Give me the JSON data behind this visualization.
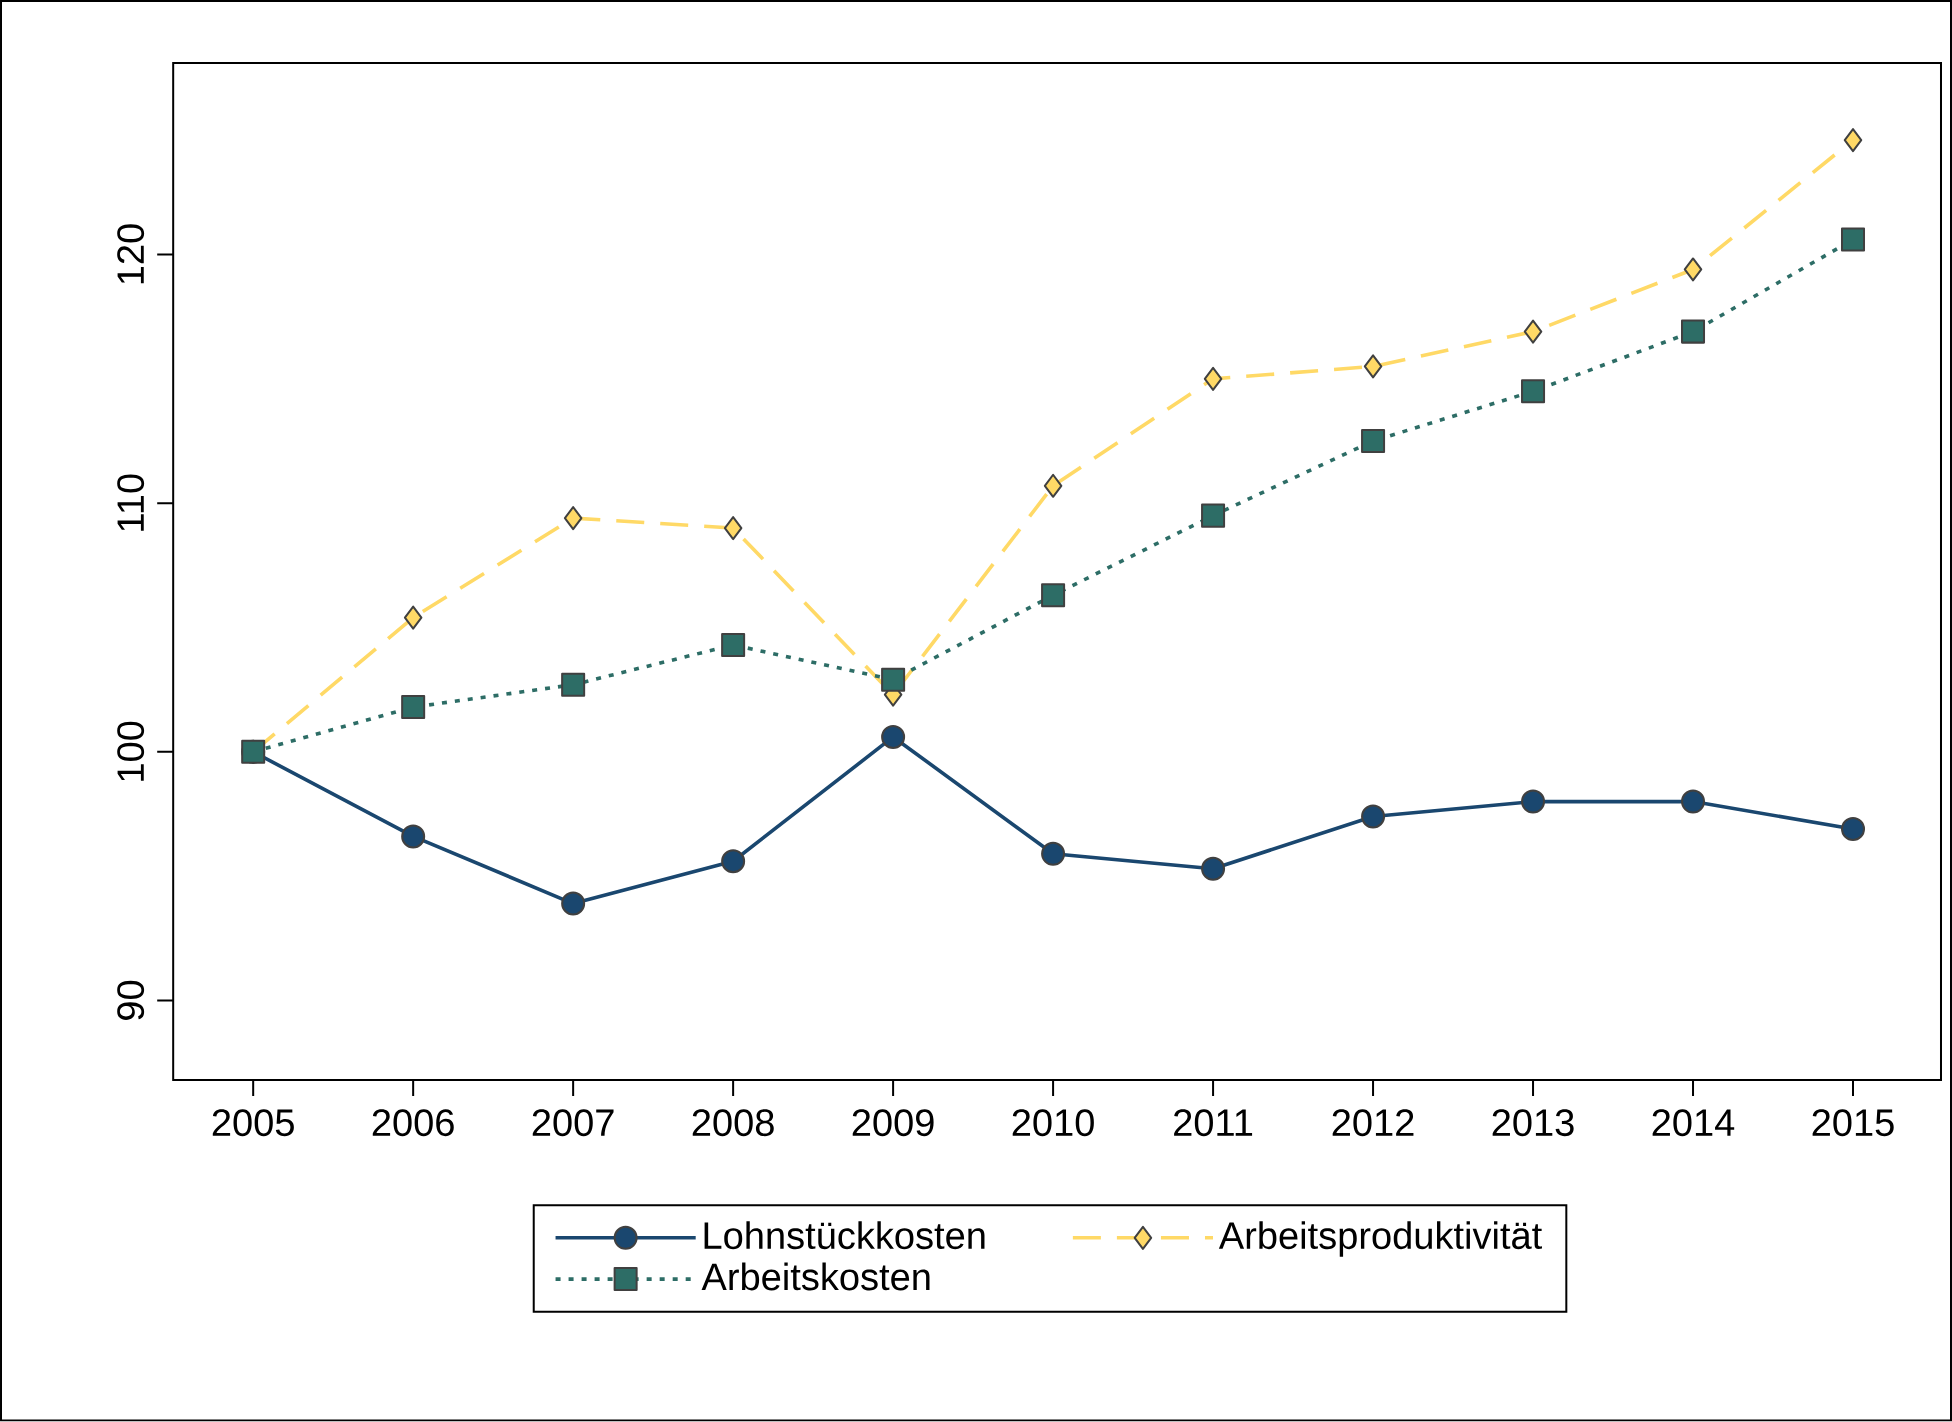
{
  "chart_data": {
    "type": "line",
    "x": [
      2005,
      2006,
      2007,
      2008,
      2009,
      2010,
      2011,
      2012,
      2013,
      2014,
      2015
    ],
    "series": [
      {
        "name": "Lohnstückkosten",
        "color": "#1a476f",
        "marker": "circle",
        "line_style": "solid",
        "values": [
          100,
          96.6,
          93.9,
          95.6,
          100.6,
          95.9,
          95.3,
          97.4,
          98.0,
          98.0,
          96.9
        ]
      },
      {
        "name": "Arbeitsproduktivität",
        "color": "#ffd966",
        "marker": "diamond",
        "line_style": "dashed",
        "values": [
          100,
          105.4,
          109.4,
          109.0,
          102.3,
          110.7,
          115.0,
          115.5,
          116.9,
          119.4,
          124.6
        ]
      },
      {
        "name": "Arbeitskosten",
        "color": "#2d6d66",
        "marker": "square",
        "line_style": "dotted",
        "values": [
          100,
          101.8,
          102.7,
          104.3,
          102.9,
          106.3,
          109.5,
          112.5,
          114.5,
          116.9,
          120.6
        ]
      }
    ],
    "xlim": [
      2004.5,
      2015.55
    ],
    "ylim": [
      86.8,
      127.7
    ],
    "xticks": [
      2005,
      2006,
      2007,
      2008,
      2009,
      2010,
      2011,
      2012,
      2013,
      2014,
      2015
    ],
    "yticks": [
      90,
      100,
      110,
      120
    ],
    "grid": false,
    "legend": "bottom"
  }
}
